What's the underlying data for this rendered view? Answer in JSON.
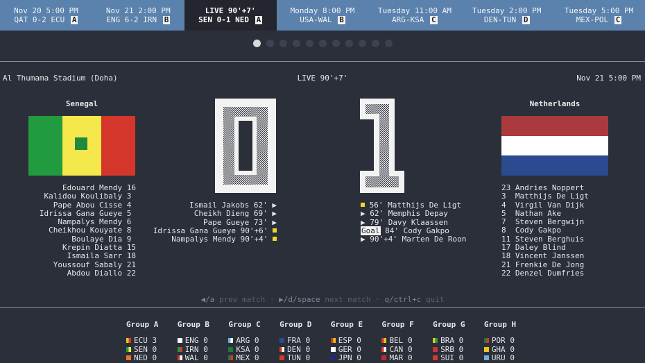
{
  "schedule": [
    {
      "line1": "Nov 20 5:00 PM",
      "teams": "QAT 0-2 ECU",
      "group": "A",
      "live": false
    },
    {
      "line1": "Nov 21 2:00 PM",
      "teams": "ENG 6-2 IRN",
      "group": "B",
      "live": false
    },
    {
      "line1": "LIVE 90'+7'",
      "teams": "SEN 0-1 NED",
      "group": "A",
      "live": true
    },
    {
      "line1": "Monday 8:00 PM",
      "teams": "USA-WAL",
      "group": "B",
      "live": false
    },
    {
      "line1": "Tuesday 11:00 AM",
      "teams": "ARG-KSA",
      "group": "C",
      "live": false
    },
    {
      "line1": "Tuesday 2:00 PM",
      "teams": "DEN-TUN",
      "group": "D",
      "live": false
    },
    {
      "line1": "Tuesday 5:00 PM",
      "teams": "MEX-POL",
      "group": "C",
      "live": false
    }
  ],
  "pager": {
    "total": 11,
    "active": 0
  },
  "match": {
    "venue": "Al Thumama Stadium (Doha)",
    "status": "LIVE 90'+7'",
    "datetime": "Nov 21 5:00 PM",
    "home": {
      "name": "Senegal",
      "score": 0
    },
    "away": {
      "name": "Netherlands",
      "score": 1
    }
  },
  "home_lineup": [
    {
      "name": "Edouard Mendy",
      "num": "16"
    },
    {
      "name": "Kalidou Koulibaly",
      "num": "3"
    },
    {
      "name": "Pape Abou Cisse",
      "num": "4"
    },
    {
      "name": "Idrissa Gana Gueye",
      "num": "5"
    },
    {
      "name": "Nampalys Mendy",
      "num": "6"
    },
    {
      "name": "Cheikhou Kouyate",
      "num": "8"
    },
    {
      "name": "Boulaye Dia",
      "num": "9"
    },
    {
      "name": "Krepin Diatta",
      "num": "15"
    },
    {
      "name": "Ismaila Sarr",
      "num": "18"
    },
    {
      "name": "Youssouf Sabaly",
      "num": "21"
    },
    {
      "name": "Abdou Diallo",
      "num": "22"
    }
  ],
  "away_lineup": [
    {
      "num": "23",
      "name": "Andries Noppert"
    },
    {
      "num": "3",
      "name": "Matthijs De Ligt"
    },
    {
      "num": "4",
      "name": "Virgil Van Dijk"
    },
    {
      "num": "5",
      "name": "Nathan Ake"
    },
    {
      "num": "7",
      "name": "Steven Bergwijn"
    },
    {
      "num": "8",
      "name": "Cody Gakpo"
    },
    {
      "num": "11",
      "name": "Steven Berghuis"
    },
    {
      "num": "17",
      "name": "Daley Blind"
    },
    {
      "num": "18",
      "name": "Vincent Janssen"
    },
    {
      "num": "21",
      "name": "Frenkie De Jong"
    },
    {
      "num": "22",
      "name": "Denzel Dumfries"
    }
  ],
  "home_events": [
    {
      "text": "Ismail Jakobs 62'",
      "icon": "sub"
    },
    {
      "text": "Cheikh Dieng 69'",
      "icon": "sub"
    },
    {
      "text": "Pape Gueye 73'",
      "icon": "sub"
    },
    {
      "text": "Idrissa Gana Gueye 90'+6'",
      "icon": "card"
    },
    {
      "text": "Nampalys Mendy 90'+4'",
      "icon": "card"
    }
  ],
  "away_events": [
    {
      "text": "56' Matthijs De Ligt",
      "icon": "card"
    },
    {
      "text": "62' Memphis Depay",
      "icon": "sub"
    },
    {
      "text": "79' Davy Klaassen",
      "icon": "sub"
    },
    {
      "text": "84' Cody Gakpo",
      "icon": "goal",
      "tag": "Goal"
    },
    {
      "text": "90'+4' Marten De Roon",
      "icon": "sub"
    }
  ],
  "icons": {
    "sub": "▶",
    "card_color": "#f0d829"
  },
  "help": {
    "prev_key": "◀/a",
    "prev_label": "prev match",
    "sep": "·",
    "next_key": "▶/d/space",
    "next_label": "next match",
    "quit_key": "q/ctrl+c",
    "quit_label": "quit"
  },
  "groups": [
    {
      "title": "Group A",
      "teams": [
        {
          "code": "ECU",
          "pts": "3",
          "c1": "#f0c419",
          "c2": "#d33a2c"
        },
        {
          "code": "SEN",
          "pts": "0",
          "c1": "#229a3f",
          "c2": "#f4e84c"
        },
        {
          "code": "NED",
          "pts": "0",
          "c1": "#e8742c",
          "c2": "#e8742c"
        }
      ]
    },
    {
      "title": "Group B",
      "teams": [
        {
          "code": "ENG",
          "pts": "0",
          "c1": "#ffffff",
          "c2": "#ffffff"
        },
        {
          "code": "IRN",
          "pts": "0",
          "c1": "#229a3f",
          "c2": "#d33a2c"
        },
        {
          "code": "WAL",
          "pts": "0",
          "c1": "#d33a2c",
          "c2": "#ffffff"
        }
      ]
    },
    {
      "title": "Group C",
      "teams": [
        {
          "code": "ARG",
          "pts": "0",
          "c1": "#74acdf",
          "c2": "#ffffff"
        },
        {
          "code": "KSA",
          "pts": "0",
          "c1": "#1c7a3c",
          "c2": "#1c7a3c"
        },
        {
          "code": "MEX",
          "pts": "0",
          "c1": "#1c7a3c",
          "c2": "#d33a2c"
        }
      ]
    },
    {
      "title": "Group D",
      "teams": [
        {
          "code": "FRA",
          "pts": "0",
          "c1": "#2b4a8f",
          "c2": "#2b4a8f"
        },
        {
          "code": "DEN",
          "pts": "0",
          "c1": "#d33a2c",
          "c2": "#ffffff"
        },
        {
          "code": "TUN",
          "pts": "0",
          "c1": "#d33a2c",
          "c2": "#d33a2c"
        }
      ]
    },
    {
      "title": "Group E",
      "teams": [
        {
          "code": "ESP",
          "pts": "0",
          "c1": "#d33a2c",
          "c2": "#f0c419"
        },
        {
          "code": "GER",
          "pts": "0",
          "c1": "#ffffff",
          "c2": "#ffffff"
        },
        {
          "code": "JPN",
          "pts": "0",
          "c1": "#1e2a80",
          "c2": "#1e2a80"
        }
      ]
    },
    {
      "title": "Group F",
      "teams": [
        {
          "code": "BEL",
          "pts": "0",
          "c1": "#d33a2c",
          "c2": "#f0c419"
        },
        {
          "code": "CAN",
          "pts": "0",
          "c1": "#d33a2c",
          "c2": "#ffffff"
        },
        {
          "code": "MAR",
          "pts": "0",
          "c1": "#c1272d",
          "c2": "#c1272d"
        }
      ]
    },
    {
      "title": "Group G",
      "teams": [
        {
          "code": "BRA",
          "pts": "0",
          "c1": "#f0c419",
          "c2": "#229a3f"
        },
        {
          "code": "SRB",
          "pts": "0",
          "c1": "#c6363c",
          "c2": "#c6363c"
        },
        {
          "code": "SUI",
          "pts": "0",
          "c1": "#d33a2c",
          "c2": "#d33a2c"
        }
      ]
    },
    {
      "title": "Group H",
      "teams": [
        {
          "code": "POR",
          "pts": "0",
          "c1": "#1c7a3c",
          "c2": "#d33a2c"
        },
        {
          "code": "GHA",
          "pts": "0",
          "c1": "#f0c419",
          "c2": "#f0c419"
        },
        {
          "code": "URU",
          "pts": "0",
          "c1": "#74acdf",
          "c2": "#74acdf"
        }
      ]
    }
  ]
}
